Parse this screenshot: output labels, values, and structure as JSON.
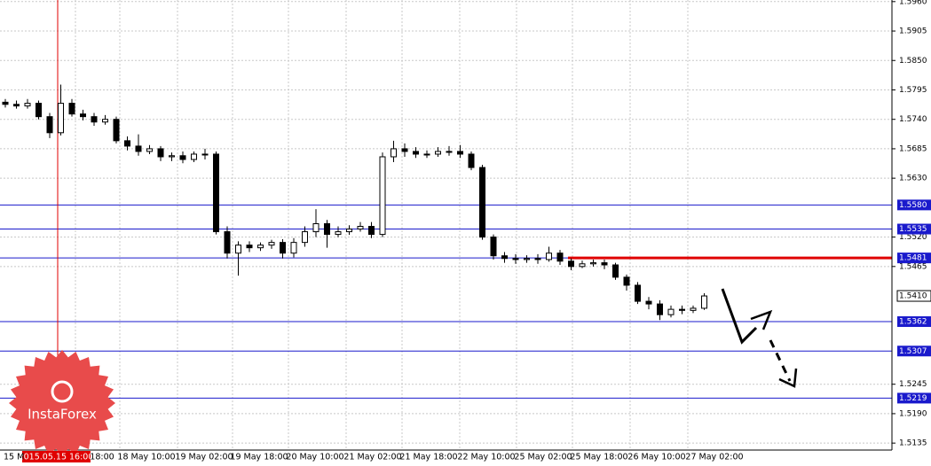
{
  "chart_data": {
    "type": "candlestick",
    "open": [
      1.5772,
      1.5768,
      1.5765,
      1.577,
      1.5745,
      1.5715,
      1.577,
      1.575,
      1.5745,
      1.5735,
      1.574,
      1.57,
      1.569,
      1.568,
      1.5685,
      1.567,
      1.5672,
      1.5665,
      1.5675,
      1.5675,
      1.553,
      1.549,
      1.5505,
      1.55,
      1.5505,
      1.551,
      1.549,
      1.551,
      1.553,
      1.5545,
      1.5525,
      1.553,
      1.5535,
      1.554,
      1.5525,
      1.567,
      1.5685,
      1.568,
      1.5675,
      1.5675,
      1.568,
      1.568,
      1.5675,
      1.565,
      1.552,
      1.5485,
      1.548,
      1.5478,
      1.548,
      1.5478,
      1.549,
      1.5475,
      1.5465,
      1.547,
      1.5472,
      1.5468,
      1.5445,
      1.543,
      1.54,
      1.5395,
      1.5375,
      1.5385,
      1.5383,
      1.5387
    ],
    "high": [
      1.5778,
      1.5775,
      1.5778,
      1.5775,
      1.5752,
      1.5805,
      1.5778,
      1.5758,
      1.5752,
      1.5748,
      1.5745,
      1.5708,
      1.5712,
      1.5692,
      1.569,
      1.5678,
      1.568,
      1.568,
      1.5685,
      1.568,
      1.554,
      1.5512,
      1.5512,
      1.551,
      1.5515,
      1.5516,
      1.5518,
      1.554,
      1.5572,
      1.5552,
      1.554,
      1.5542,
      1.5548,
      1.5548,
      1.5678,
      1.57,
      1.5695,
      1.5688,
      1.5682,
      1.5688,
      1.569,
      1.5692,
      1.568,
      1.5655,
      1.5525,
      1.5492,
      1.5488,
      1.5486,
      1.5488,
      1.5502,
      1.5496,
      1.548,
      1.5476,
      1.5478,
      1.5478,
      1.5472,
      1.545,
      1.5436,
      1.5408,
      1.5402,
      1.5392,
      1.5392,
      1.5392,
      1.5415
    ],
    "low": [
      1.5762,
      1.576,
      1.576,
      1.574,
      1.5705,
      1.571,
      1.5745,
      1.5738,
      1.5728,
      1.573,
      1.5695,
      1.5682,
      1.5672,
      1.5675,
      1.5662,
      1.5662,
      1.5658,
      1.566,
      1.5665,
      1.5525,
      1.548,
      1.5448,
      1.5492,
      1.5494,
      1.5498,
      1.548,
      1.5482,
      1.5502,
      1.552,
      1.55,
      1.552,
      1.5524,
      1.553,
      1.5518,
      1.552,
      1.566,
      1.567,
      1.5668,
      1.5668,
      1.567,
      1.5672,
      1.5668,
      1.5645,
      1.5515,
      1.5478,
      1.5472,
      1.547,
      1.5472,
      1.547,
      1.5474,
      1.5468,
      1.5458,
      1.5462,
      1.5465,
      1.546,
      1.544,
      1.542,
      1.5395,
      1.5385,
      1.5365,
      1.537,
      1.5376,
      1.5378,
      1.5384
    ],
    "close": [
      1.5768,
      1.5765,
      1.577,
      1.5745,
      1.5715,
      1.577,
      1.575,
      1.5745,
      1.5735,
      1.574,
      1.57,
      1.569,
      1.568,
      1.5685,
      1.567,
      1.5672,
      1.5665,
      1.5675,
      1.5675,
      1.553,
      1.549,
      1.5505,
      1.55,
      1.5505,
      1.551,
      1.549,
      1.551,
      1.553,
      1.5545,
      1.5525,
      1.553,
      1.5535,
      1.554,
      1.5525,
      1.567,
      1.5685,
      1.568,
      1.5675,
      1.5675,
      1.568,
      1.568,
      1.5675,
      1.565,
      1.552,
      1.5485,
      1.548,
      1.5478,
      1.548,
      1.5478,
      1.549,
      1.5475,
      1.5465,
      1.547,
      1.5472,
      1.5468,
      1.5445,
      1.543,
      1.54,
      1.5395,
      1.5375,
      1.5385,
      1.5383,
      1.5387,
      1.541
    ],
    "ylim": [
      1.5122,
      1.5963
    ],
    "yticks": [
      {
        "value": 1.596,
        "label": "1.5960"
      },
      {
        "value": 1.5905,
        "label": "1.5905"
      },
      {
        "value": 1.585,
        "label": "1.5850"
      },
      {
        "value": 1.5795,
        "label": "1.5795"
      },
      {
        "value": 1.574,
        "label": "1.5740"
      },
      {
        "value": 1.5685,
        "label": "1.5685"
      },
      {
        "value": 1.563,
        "label": "1.5630"
      },
      {
        "value": 1.552,
        "label": "1.5520"
      },
      {
        "value": 1.5465,
        "label": "1.5465"
      },
      {
        "value": 1.5245,
        "label": "1.5245"
      },
      {
        "value": 1.519,
        "label": "1.5190"
      },
      {
        "value": 1.5135,
        "label": "1.5135"
      }
    ],
    "levels": [
      {
        "value": 1.558,
        "label": "1.5580"
      },
      {
        "value": 1.5535,
        "label": "1.5535"
      },
      {
        "value": 1.5481,
        "label": "1.5481"
      },
      {
        "value": 1.5362,
        "label": "1.5362"
      },
      {
        "value": 1.5307,
        "label": "1.5307"
      },
      {
        "value": 1.5219,
        "label": "1.5219"
      }
    ],
    "highlight_level": {
      "value": 1.5481,
      "color": "#e00000"
    },
    "last_price": {
      "value": 1.541,
      "label": "1.5410"
    },
    "x_labels": [
      "15 M",
      "18:00",
      "18 May 10:00",
      "19 May 02:00",
      "19 May 18:00",
      "20 May 10:00",
      "21 May 02:00",
      "21 May 18:00",
      "22 May 10:00",
      "25 May 02:00",
      "25 May 18:00",
      "26 May 10:00",
      "27 May 02:00"
    ],
    "crosshair_label": "2015.05.15 16:00",
    "level_color": "#1a1acc",
    "grid": true,
    "logo": "InstaForex"
  }
}
